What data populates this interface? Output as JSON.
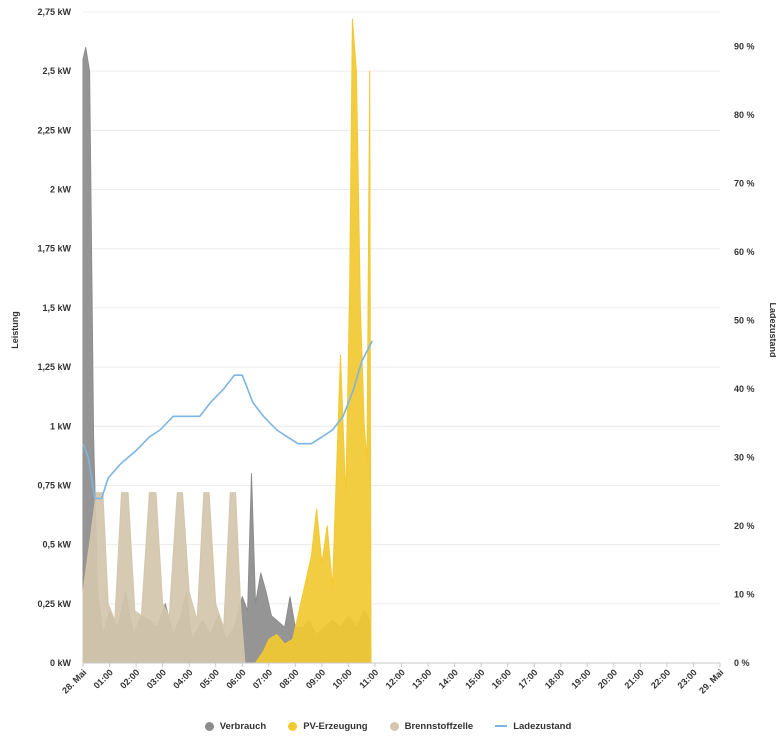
{
  "chart_data": {
    "type": "area",
    "ylabel_left": "Leistung",
    "ylabel_right": "Ladezustand",
    "y_left_ticks": [
      "0 kW",
      "0,25 kW",
      "0,5 kW",
      "0,75 kW",
      "1 kW",
      "1,25 kW",
      "1,5 kW",
      "1,75 kW",
      "2 kW",
      "2,25 kW",
      "2,5 kW",
      "2,75 kW"
    ],
    "y_left_range_kw": [
      0,
      2.75
    ],
    "y_right_ticks": [
      "0 %",
      "10 %",
      "20 %",
      "30 %",
      "40 %",
      "50 %",
      "60 %",
      "70 %",
      "80 %",
      "90 %"
    ],
    "y_right_range_pct": [
      0,
      95
    ],
    "x_ticks": [
      "28. Mai",
      "01:00",
      "02:00",
      "03:00",
      "04:00",
      "05:00",
      "06:00",
      "07:00",
      "08:00",
      "09:00",
      "10:00",
      "11:00",
      "12:00",
      "13:00",
      "14:00",
      "15:00",
      "16:00",
      "17:00",
      "18:00",
      "19:00",
      "20:00",
      "21:00",
      "22:00",
      "23:00",
      "29. Mai"
    ],
    "x_range_h": [
      0,
      24
    ],
    "grid": true,
    "legend_position": "bottom",
    "series": [
      {
        "name": "Verbrauch",
        "kind": "area",
        "color": "#8c8c8c",
        "unit": "kW",
        "points": [
          [
            0,
            2.55
          ],
          [
            0.1,
            2.6
          ],
          [
            0.25,
            2.5
          ],
          [
            0.4,
            0.95
          ],
          [
            0.55,
            0.3
          ],
          [
            0.75,
            0.12
          ],
          [
            1.0,
            0.22
          ],
          [
            1.3,
            0.15
          ],
          [
            1.6,
            0.3
          ],
          [
            1.9,
            0.12
          ],
          [
            2.2,
            0.2
          ],
          [
            2.5,
            0.18
          ],
          [
            2.8,
            0.15
          ],
          [
            3.1,
            0.25
          ],
          [
            3.4,
            0.12
          ],
          [
            3.7,
            0.2
          ],
          [
            3.9,
            0.3
          ],
          [
            4.1,
            0.1
          ],
          [
            4.5,
            0.18
          ],
          [
            4.8,
            0.12
          ],
          [
            5.1,
            0.2
          ],
          [
            5.4,
            0.1
          ],
          [
            5.7,
            0.15
          ],
          [
            6.0,
            0.28
          ],
          [
            6.2,
            0.22
          ],
          [
            6.35,
            0.8
          ],
          [
            6.5,
            0.25
          ],
          [
            6.7,
            0.38
          ],
          [
            6.9,
            0.3
          ],
          [
            7.1,
            0.2
          ],
          [
            7.3,
            0.18
          ],
          [
            7.6,
            0.15
          ],
          [
            7.8,
            0.28
          ],
          [
            8.0,
            0.15
          ],
          [
            8.3,
            0.15
          ],
          [
            8.5,
            0.18
          ],
          [
            8.8,
            0.12
          ],
          [
            9.1,
            0.15
          ],
          [
            9.4,
            0.18
          ],
          [
            9.7,
            0.15
          ],
          [
            10.0,
            0.2
          ],
          [
            10.3,
            0.15
          ],
          [
            10.6,
            0.22
          ],
          [
            10.8,
            0.18
          ]
        ]
      },
      {
        "name": "PV-Erzeugung",
        "kind": "area",
        "color": "#f2c931",
        "unit": "kW",
        "points": [
          [
            6.0,
            0
          ],
          [
            6.5,
            0
          ],
          [
            6.8,
            0.05
          ],
          [
            7.0,
            0.1
          ],
          [
            7.3,
            0.12
          ],
          [
            7.6,
            0.08
          ],
          [
            7.9,
            0.1
          ],
          [
            8.1,
            0.2
          ],
          [
            8.3,
            0.3
          ],
          [
            8.6,
            0.45
          ],
          [
            8.8,
            0.65
          ],
          [
            9.0,
            0.42
          ],
          [
            9.2,
            0.58
          ],
          [
            9.4,
            0.32
          ],
          [
            9.7,
            1.3
          ],
          [
            9.9,
            0.7
          ],
          [
            10.05,
            1.6
          ],
          [
            10.15,
            2.72
          ],
          [
            10.3,
            2.5
          ],
          [
            10.45,
            1.5
          ],
          [
            10.6,
            1.0
          ],
          [
            10.7,
            0.85
          ],
          [
            10.8,
            2.5
          ],
          [
            10.85,
            0
          ]
        ]
      },
      {
        "name": "Brennstoffzelle",
        "kind": "area",
        "color": "#d2c6ac",
        "unit": "kW",
        "points": [
          [
            0,
            0.3
          ],
          [
            0.3,
            0.55
          ],
          [
            0.5,
            0.72
          ],
          [
            0.75,
            0.72
          ],
          [
            0.95,
            0.25
          ],
          [
            1.2,
            0.18
          ],
          [
            1.45,
            0.72
          ],
          [
            1.7,
            0.72
          ],
          [
            1.95,
            0.22
          ],
          [
            2.2,
            0.2
          ],
          [
            2.5,
            0.72
          ],
          [
            2.75,
            0.72
          ],
          [
            3.0,
            0.25
          ],
          [
            3.25,
            0.2
          ],
          [
            3.55,
            0.72
          ],
          [
            3.75,
            0.72
          ],
          [
            4.0,
            0.3
          ],
          [
            4.3,
            0.18
          ],
          [
            4.55,
            0.72
          ],
          [
            4.75,
            0.72
          ],
          [
            5.0,
            0.25
          ],
          [
            5.3,
            0.15
          ],
          [
            5.55,
            0.72
          ],
          [
            5.75,
            0.72
          ],
          [
            5.95,
            0.22
          ],
          [
            6.1,
            0
          ]
        ]
      },
      {
        "name": "Ladezustand",
        "kind": "line",
        "color": "#7cb5e2",
        "unit": "%",
        "points": [
          [
            0,
            32
          ],
          [
            0.2,
            30
          ],
          [
            0.45,
            24
          ],
          [
            0.7,
            24
          ],
          [
            0.95,
            27
          ],
          [
            1.4,
            29
          ],
          [
            1.7,
            30
          ],
          [
            2.0,
            31
          ],
          [
            2.5,
            33
          ],
          [
            2.9,
            34
          ],
          [
            3.4,
            36
          ],
          [
            4.4,
            36
          ],
          [
            4.8,
            38
          ],
          [
            5.3,
            40
          ],
          [
            5.7,
            42
          ],
          [
            6.0,
            42
          ],
          [
            6.4,
            38
          ],
          [
            6.8,
            36
          ],
          [
            7.3,
            34
          ],
          [
            7.7,
            33
          ],
          [
            8.1,
            32
          ],
          [
            8.6,
            32
          ],
          [
            9.0,
            33
          ],
          [
            9.4,
            34
          ],
          [
            9.8,
            36
          ],
          [
            10.2,
            40
          ],
          [
            10.5,
            44
          ],
          [
            10.9,
            47
          ]
        ]
      }
    ]
  },
  "legend": {
    "items": [
      {
        "label": "Verbrauch",
        "color": "#8c8c8c",
        "shape": "dot"
      },
      {
        "label": "PV-Erzeugung",
        "color": "#f2c931",
        "shape": "dot"
      },
      {
        "label": "Brennstoffzelle",
        "color": "#d2c6ac",
        "shape": "dot"
      },
      {
        "label": "Ladezustand",
        "color": "#7cb5e2",
        "shape": "line"
      }
    ]
  }
}
